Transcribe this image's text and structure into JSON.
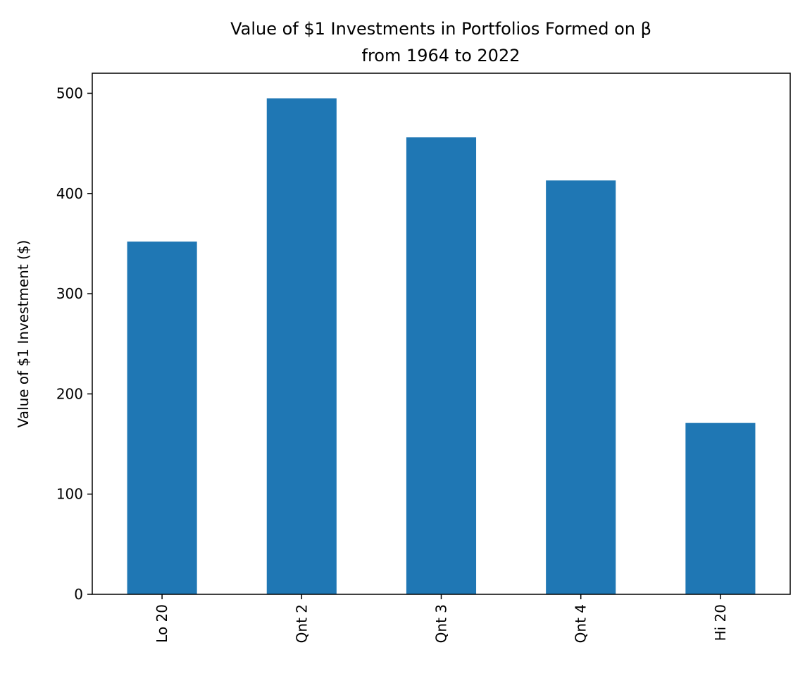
{
  "chart_data": {
    "type": "bar",
    "title_line1": "Value of $1 Investments in Portfolios Formed on β",
    "title_line2": "from 1964 to 2022",
    "xlabel": "",
    "ylabel": "Value of $1 Investment ($)",
    "categories": [
      "Lo 20",
      "Qnt 2",
      "Qnt 3",
      "Qnt 4",
      "Hi 20"
    ],
    "values": [
      352,
      495,
      456,
      413,
      171
    ],
    "ylim": [
      0,
      520
    ],
    "yticks": [
      0,
      100,
      200,
      300,
      400,
      500
    ],
    "bar_color": "#1f77b4",
    "grid": false,
    "legend": "none"
  }
}
